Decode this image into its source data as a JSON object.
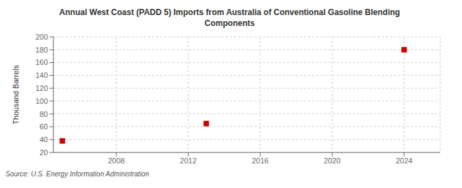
{
  "chart_data": {
    "type": "scatter",
    "title": "Annual West Coast (PADD 5) Imports from Australia of Conventional Gasoline Blending\nComponents",
    "ylabel": "Thousand Barrels",
    "annotation": "Source: U.S. Energy Information Administration",
    "x": [
      2005,
      2013,
      2024
    ],
    "values": [
      38,
      65,
      180
    ],
    "color": "#cc0000",
    "marker": "square",
    "xlim": [
      2004.5,
      2026
    ],
    "xticks": [
      2008,
      2012,
      2016,
      2020,
      2024
    ],
    "ylim": [
      20,
      200
    ],
    "yticks": [
      20,
      40,
      60,
      80,
      100,
      120,
      140,
      160,
      180,
      200
    ],
    "grid": true
  }
}
